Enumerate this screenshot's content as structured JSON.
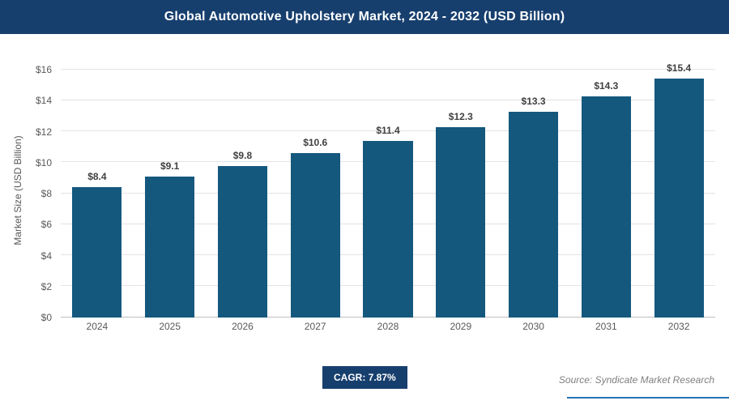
{
  "header": {
    "title": "Global Automotive Upholstery Market, 2024 - 2032 (USD Billion)"
  },
  "chart_data": {
    "type": "bar",
    "categories": [
      "2024",
      "2025",
      "2026",
      "2027",
      "2028",
      "2029",
      "2030",
      "2031",
      "2032"
    ],
    "values": [
      8.4,
      9.1,
      9.8,
      10.6,
      11.4,
      12.3,
      13.3,
      14.3,
      15.4
    ],
    "data_labels": [
      "$8.4",
      "$9.1",
      "$9.8",
      "$10.6",
      "$11.4",
      "$12.3",
      "$13.3",
      "$14.3",
      "$15.4"
    ],
    "title": "Global Automotive Upholstery Market, 2024 - 2032 (USD Billion)",
    "xlabel": "",
    "ylabel": "Market Size (USD Billion)",
    "ylim": [
      0,
      16
    ],
    "ytick_step": 2,
    "ytick_labels": [
      "$0",
      "$2",
      "$4",
      "$6",
      "$8",
      "$10",
      "$12",
      "$14",
      "$16"
    ],
    "grid": true,
    "legend": "none",
    "bar_color": "#14587e"
  },
  "footer": {
    "cagr_label": "CAGR: 7.87%",
    "source": "Source: Syndicate Market Research"
  },
  "colors": {
    "header_bg": "#173f6e",
    "bar": "#14587e",
    "accent_line": "#2573b5"
  }
}
